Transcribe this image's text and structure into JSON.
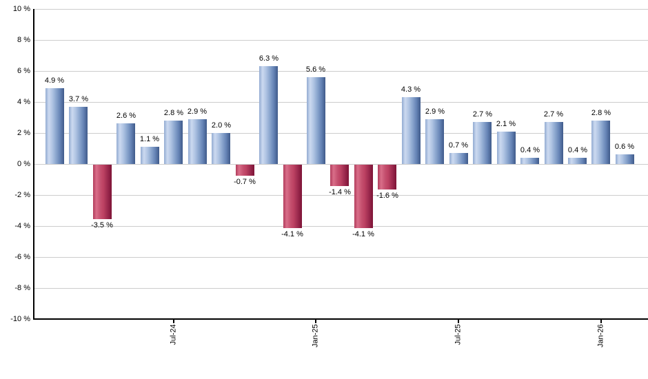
{
  "chart_data": {
    "type": "bar",
    "unit": "%",
    "values": [
      4.9,
      3.7,
      -3.5,
      2.6,
      1.1,
      2.8,
      2.9,
      2.0,
      -0.7,
      6.3,
      -4.1,
      5.6,
      -1.4,
      -4.1,
      -1.6,
      4.3,
      2.9,
      0.7,
      2.7,
      2.1,
      0.4,
      2.7,
      0.4,
      2.8,
      0.6
    ],
    "bar_labels": [
      "4.9 %",
      "3.7 %",
      "-3.5 %",
      "2.6 %",
      "1.1 %",
      "2.8 %",
      "2.9 %",
      "2.0 %",
      "-0.7 %",
      "6.3 %",
      "-4.1 %",
      "5.6 %",
      "-1.4 %",
      "-4.1 %",
      "-1.6 %",
      "4.3 %",
      "2.9 %",
      "0.7 %",
      "2.7 %",
      "2.1 %",
      "0.4 %",
      "2.7 %",
      "0.4 %",
      "2.8 %",
      "0.6 %"
    ],
    "x_ticks": [
      {
        "index": 5,
        "label": "Jul-24"
      },
      {
        "index": 11,
        "label": "Jan-25"
      },
      {
        "index": 17,
        "label": "Jul-25"
      },
      {
        "index": 23,
        "label": "Jan-26"
      }
    ],
    "y_ticks": [
      {
        "value": 10,
        "label": "10 %"
      },
      {
        "value": 8,
        "label": "8 %"
      },
      {
        "value": 6,
        "label": "6 %"
      },
      {
        "value": 4,
        "label": "4 %"
      },
      {
        "value": 2,
        "label": "2 %"
      },
      {
        "value": 0,
        "label": "0 %"
      },
      {
        "value": -2,
        "label": "-2 %"
      },
      {
        "value": -4,
        "label": "-4 %"
      },
      {
        "value": -6,
        "label": "-6 %"
      },
      {
        "value": -8,
        "label": "-8 %"
      },
      {
        "value": -10,
        "label": "-10 %"
      }
    ],
    "ylim": [
      -10,
      10
    ],
    "grid": true,
    "legend": "none",
    "title": "",
    "colors": {
      "positive_bar_light": "#ccdaf0",
      "positive_bar_dark": "#3f5a8a",
      "negative_bar_light": "#d96e89",
      "negative_bar_dark": "#7d1336",
      "gridline": "#cccccc",
      "axis": "#000000",
      "text": "#000000",
      "background": "#ffffff"
    }
  }
}
